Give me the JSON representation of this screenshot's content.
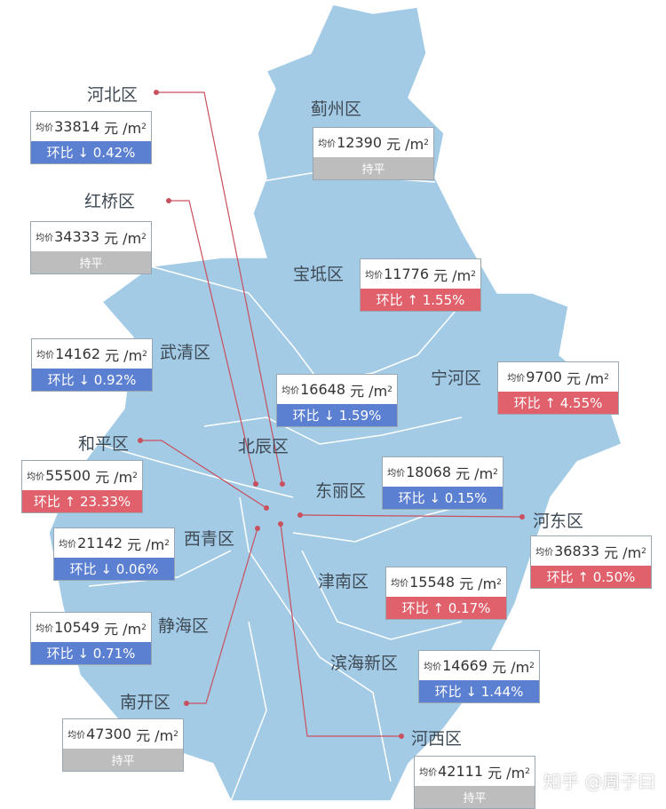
{
  "colors": {
    "map": "#a3cbe6",
    "down": "#5b7fd1",
    "up": "#e0606b",
    "flat": "#bdbdbd",
    "leader": "#c9505e"
  },
  "price_prefix": "均价",
  "unit": "元 /m",
  "unit_sup": "2",
  "districts": [
    {
      "name": "河北区",
      "price": "33814",
      "change": "环比 ↓ 0.42%",
      "trend": "down"
    },
    {
      "name": "红桥区",
      "price": "34333",
      "change": "持平",
      "trend": "flat"
    },
    {
      "name": "蓟州区",
      "price": "12390",
      "change": "持平",
      "trend": "flat"
    },
    {
      "name": "宝坻区",
      "price": "11776",
      "change": "环比 ↑ 1.55%",
      "trend": "up"
    },
    {
      "name": "武清区",
      "price": "14162",
      "change": "环比 ↓ 0.92%",
      "trend": "down"
    },
    {
      "name": "北辰区",
      "price": "16648",
      "change": "环比 ↓ 1.59%",
      "trend": "down"
    },
    {
      "name": "宁河区",
      "price": "9700",
      "change": "环比 ↑ 4.55%",
      "trend": "up"
    },
    {
      "name": "和平区",
      "price": "55500",
      "change": "环比 ↑ 23.33%",
      "trend": "up"
    },
    {
      "name": "东丽区",
      "price": "18068",
      "change": "环比 ↓ 0.15%",
      "trend": "down"
    },
    {
      "name": "河东区",
      "price": "36833",
      "change": "环比 ↑ 0.50%",
      "trend": "up"
    },
    {
      "name": "西青区",
      "price": "21142",
      "change": "环比 ↓ 0.06%",
      "trend": "down"
    },
    {
      "name": "津南区",
      "price": "15548",
      "change": "环比 ↑ 0.17%",
      "trend": "up"
    },
    {
      "name": "静海区",
      "price": "10549",
      "change": "环比 ↓ 0.71%",
      "trend": "down"
    },
    {
      "name": "滨海新区",
      "price": "14669",
      "change": "环比 ↓ 1.44%",
      "trend": "down"
    },
    {
      "name": "南开区",
      "price": "47300",
      "change": "持平",
      "trend": "flat"
    },
    {
      "name": "河西区",
      "price": "42111",
      "change": "持平",
      "trend": "flat"
    }
  ],
  "watermark": "知乎 @周子曰"
}
